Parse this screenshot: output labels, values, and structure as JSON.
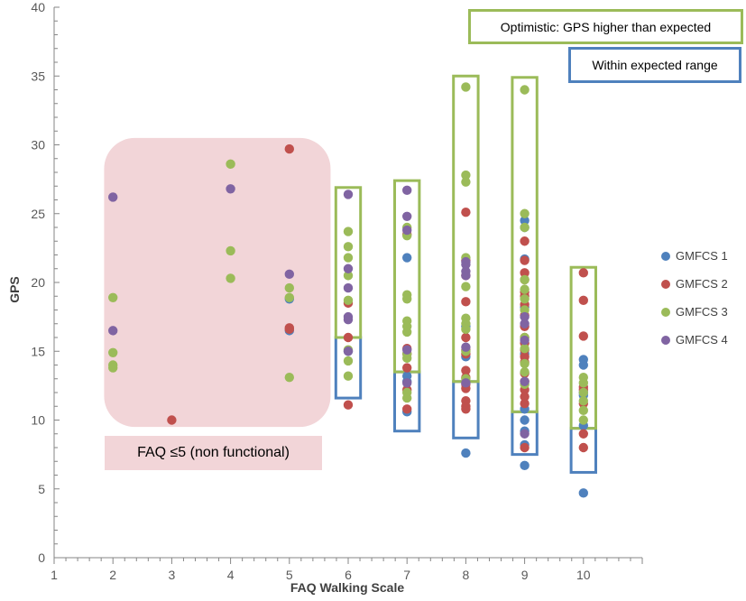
{
  "chart_data": {
    "type": "scatter",
    "xlabel": "FAQ Walking Scale",
    "ylabel": "GPS",
    "xlim": [
      1,
      11
    ],
    "ylim": [
      0,
      40
    ],
    "x_ticks": [
      "1",
      "2",
      "3",
      "4",
      "5",
      "6",
      "7",
      "8",
      "9",
      "10"
    ],
    "y_ticks": [
      "0",
      "5",
      "10",
      "15",
      "20",
      "25",
      "30",
      "35",
      "40"
    ],
    "grid": false,
    "legend_position": "right",
    "series": [
      {
        "name": "GMFCS 1",
        "color": "#4F81BD",
        "points": [
          [
            5,
            18.8
          ],
          [
            5,
            16.5
          ],
          [
            6,
            15.0
          ],
          [
            7,
            21.8
          ],
          [
            7,
            13.2
          ],
          [
            7,
            12.8
          ],
          [
            7,
            10.6
          ],
          [
            8,
            16.8
          ],
          [
            8,
            14.6
          ],
          [
            8,
            7.6
          ],
          [
            9,
            24.5
          ],
          [
            9,
            24.0
          ],
          [
            9,
            21.7
          ],
          [
            9,
            18.2
          ],
          [
            9,
            14.8
          ],
          [
            9,
            10.8
          ],
          [
            9,
            10.0
          ],
          [
            9,
            9.2
          ],
          [
            9,
            8.2
          ],
          [
            9,
            6.7
          ],
          [
            10,
            14.4
          ],
          [
            10,
            14.0
          ],
          [
            10,
            12.0
          ],
          [
            10,
            11.8
          ],
          [
            10,
            9.6
          ],
          [
            10,
            4.7
          ]
        ]
      },
      {
        "name": "GMFCS 2",
        "color": "#C0504D",
        "points": [
          [
            3,
            10.0
          ],
          [
            5,
            29.7
          ],
          [
            5,
            16.7
          ],
          [
            5,
            16.6
          ],
          [
            6,
            18.5
          ],
          [
            6,
            16.0
          ],
          [
            6,
            11.1
          ],
          [
            7,
            23.5
          ],
          [
            7,
            15.2
          ],
          [
            7,
            14.8
          ],
          [
            7,
            13.8
          ],
          [
            7,
            12.2
          ],
          [
            7,
            10.8
          ],
          [
            8,
            25.1
          ],
          [
            8,
            21.6
          ],
          [
            8,
            20.5
          ],
          [
            8,
            18.6
          ],
          [
            8,
            16.0
          ],
          [
            8,
            15.1
          ],
          [
            8,
            14.8
          ],
          [
            8,
            13.6
          ],
          [
            8,
            13.1
          ],
          [
            8,
            12.6
          ],
          [
            8,
            12.3
          ],
          [
            8,
            11.4
          ],
          [
            8,
            11.0
          ],
          [
            8,
            10.8
          ],
          [
            9,
            23.0
          ],
          [
            9,
            21.6
          ],
          [
            9,
            20.7
          ],
          [
            9,
            20.2
          ],
          [
            9,
            19.3
          ],
          [
            9,
            19.0
          ],
          [
            9,
            18.4
          ],
          [
            9,
            17.6
          ],
          [
            9,
            16.8
          ],
          [
            9,
            16.0
          ],
          [
            9,
            15.6
          ],
          [
            9,
            15.1
          ],
          [
            9,
            14.6
          ],
          [
            9,
            14.2
          ],
          [
            9,
            13.4
          ],
          [
            9,
            12.8
          ],
          [
            9,
            12.2
          ],
          [
            9,
            11.7
          ],
          [
            9,
            11.2
          ],
          [
            9,
            8.0
          ],
          [
            10,
            20.7
          ],
          [
            10,
            18.7
          ],
          [
            10,
            16.1
          ],
          [
            10,
            12.4
          ],
          [
            10,
            12.2
          ],
          [
            10,
            11.2
          ],
          [
            10,
            9.0
          ],
          [
            10,
            8.0
          ]
        ]
      },
      {
        "name": "GMFCS 3",
        "color": "#9BBB59",
        "points": [
          [
            2,
            18.9
          ],
          [
            2,
            14.9
          ],
          [
            2,
            14.0
          ],
          [
            2,
            13.8
          ],
          [
            4,
            28.6
          ],
          [
            4,
            22.3
          ],
          [
            4,
            20.3
          ],
          [
            5,
            19.6
          ],
          [
            5,
            18.9
          ],
          [
            5,
            13.1
          ],
          [
            6,
            23.7
          ],
          [
            6,
            22.6
          ],
          [
            6,
            21.8
          ],
          [
            6,
            20.5
          ],
          [
            6,
            18.7
          ],
          [
            6,
            15.1
          ],
          [
            6,
            14.3
          ],
          [
            6,
            13.2
          ],
          [
            7,
            24.0
          ],
          [
            7,
            23.4
          ],
          [
            7,
            19.1
          ],
          [
            7,
            18.8
          ],
          [
            7,
            17.2
          ],
          [
            7,
            16.8
          ],
          [
            7,
            16.4
          ],
          [
            7,
            14.8
          ],
          [
            7,
            14.5
          ],
          [
            7,
            12.0
          ],
          [
            7,
            11.6
          ],
          [
            8,
            34.2
          ],
          [
            8,
            27.8
          ],
          [
            8,
            27.3
          ],
          [
            8,
            21.8
          ],
          [
            8,
            19.7
          ],
          [
            8,
            17.4
          ],
          [
            8,
            17.0
          ],
          [
            8,
            16.6
          ],
          [
            8,
            15.0
          ],
          [
            8,
            13.0
          ],
          [
            9,
            34.0
          ],
          [
            9,
            25.0
          ],
          [
            9,
            24.0
          ],
          [
            9,
            20.2
          ],
          [
            9,
            19.5
          ],
          [
            9,
            18.8
          ],
          [
            9,
            18.0
          ],
          [
            9,
            16.0
          ],
          [
            9,
            15.2
          ],
          [
            9,
            14.1
          ],
          [
            9,
            13.5
          ],
          [
            9,
            12.6
          ],
          [
            10,
            13.1
          ],
          [
            10,
            12.7
          ],
          [
            10,
            12.0
          ],
          [
            10,
            11.4
          ],
          [
            10,
            10.7
          ],
          [
            10,
            10.0
          ]
        ]
      },
      {
        "name": "GMFCS 4",
        "color": "#8064A2",
        "points": [
          [
            2,
            26.2
          ],
          [
            2,
            16.5
          ],
          [
            4,
            26.8
          ],
          [
            5,
            20.6
          ],
          [
            6,
            26.4
          ],
          [
            6,
            21.0
          ],
          [
            6,
            19.6
          ],
          [
            6,
            17.5
          ],
          [
            6,
            17.3
          ],
          [
            6,
            15.0
          ],
          [
            7,
            26.7
          ],
          [
            7,
            24.8
          ],
          [
            7,
            23.8
          ],
          [
            7,
            15.1
          ],
          [
            7,
            12.7
          ],
          [
            8,
            21.5
          ],
          [
            8,
            21.3
          ],
          [
            8,
            20.8
          ],
          [
            8,
            20.5
          ],
          [
            8,
            15.3
          ],
          [
            8,
            12.7
          ],
          [
            9,
            17.5
          ],
          [
            9,
            17.0
          ],
          [
            9,
            15.8
          ],
          [
            9,
            12.8
          ],
          [
            9,
            9.0
          ]
        ]
      }
    ],
    "annotations": {
      "optimistic_label": "Optimistic: GPS higher than expected",
      "expected_label": "Within expected  range",
      "faq_label": "FAQ ≤5 (non functional)",
      "green_boxes": [
        [
          6,
          16.0,
          26.9
        ],
        [
          7,
          13.5,
          27.4
        ],
        [
          8,
          12.8,
          35.0
        ],
        [
          9,
          10.6,
          34.9
        ],
        [
          10,
          9.4,
          21.1
        ]
      ],
      "blue_boxes": [
        [
          6,
          11.6,
          16.0
        ],
        [
          7,
          9.2,
          13.5
        ],
        [
          8,
          8.7,
          12.8
        ],
        [
          9,
          7.5,
          10.6
        ],
        [
          10,
          6.2,
          9.4
        ]
      ],
      "nonfunctional_region": [
        1.85,
        5.7,
        9.5,
        30.5
      ],
      "region_color": "#F2D5D8",
      "optimistic_color": "#9BBB59",
      "expected_color": "#4F81BD"
    }
  }
}
